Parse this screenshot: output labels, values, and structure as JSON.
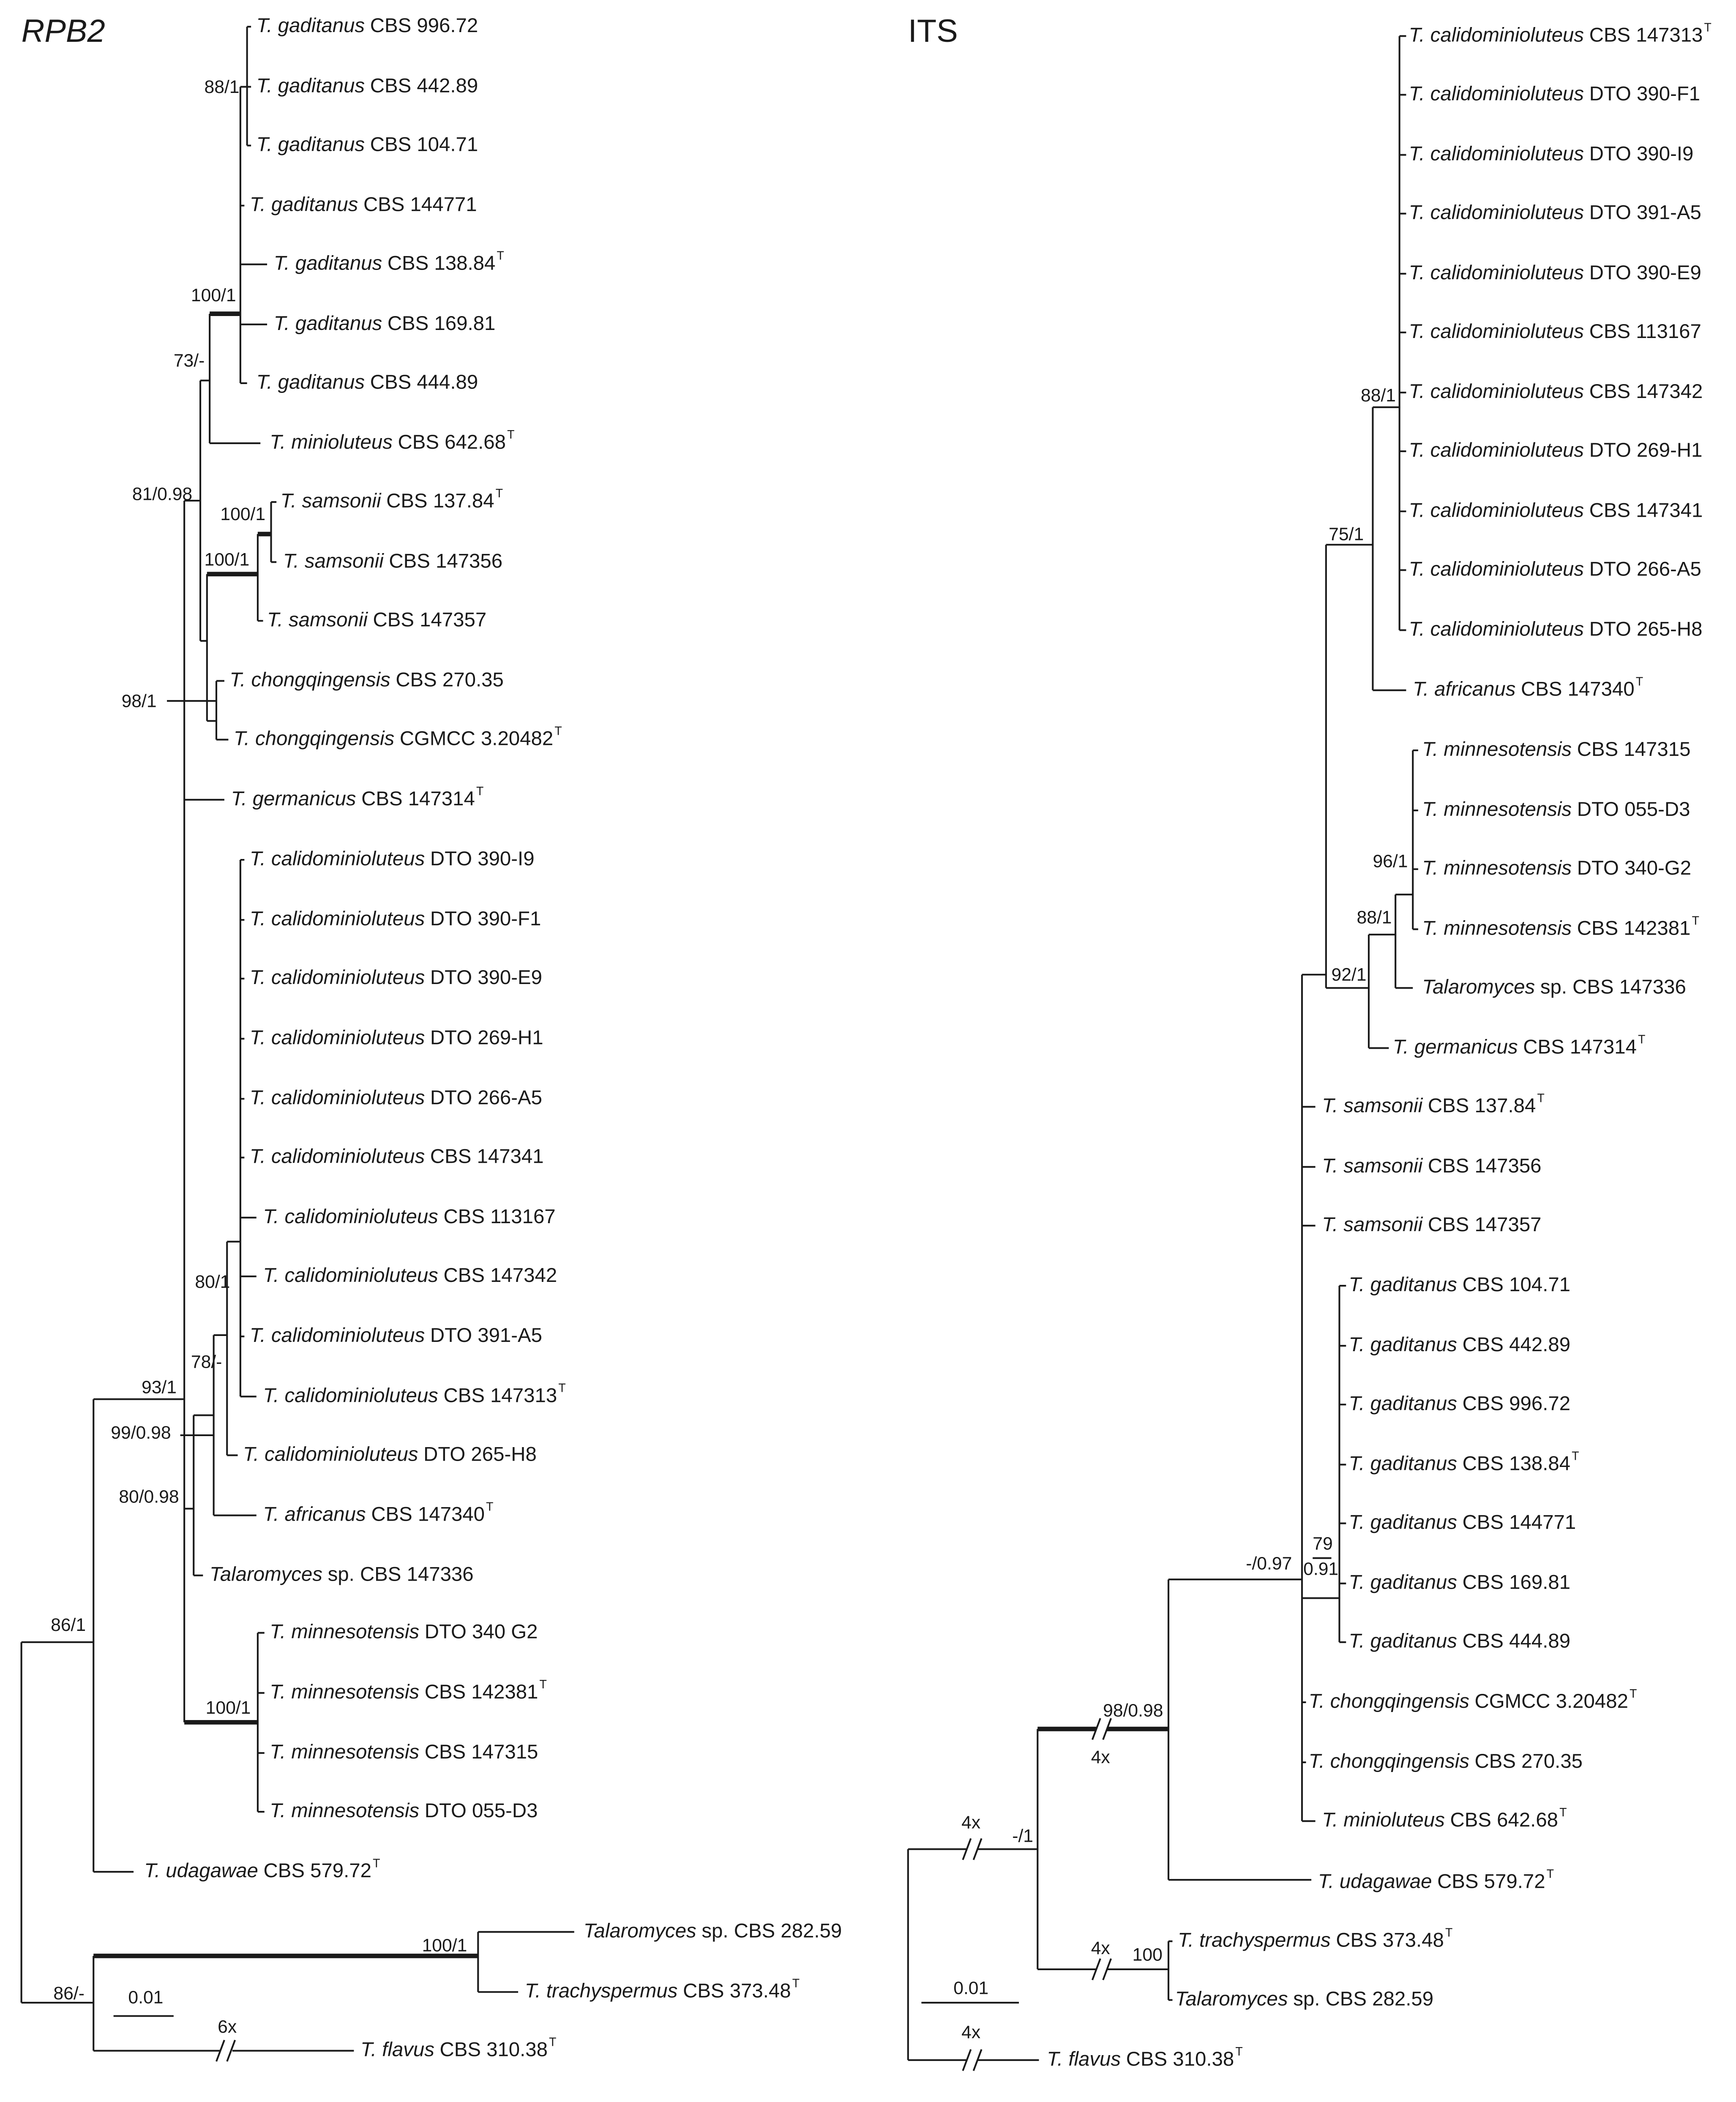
{
  "rpb2": {
    "title": "RPB2",
    "leaves": [
      {
        "taxon": "T. gaditanus",
        "strain": "CBS 996.72"
      },
      {
        "taxon": "T. gaditanus",
        "strain": "CBS 442.89"
      },
      {
        "taxon": "T. gaditanus",
        "strain": "CBS 104.71"
      },
      {
        "taxon": "T. gaditanus",
        "strain": "CBS 144771"
      },
      {
        "taxon": "T. gaditanus",
        "strain": "CBS 138.84",
        "type_mark": "T"
      },
      {
        "taxon": "T. gaditanus",
        "strain": "CBS 169.81"
      },
      {
        "taxon": "T. gaditanus",
        "strain": "CBS 444.89"
      },
      {
        "taxon": "T. minioluteus",
        "strain": "CBS 642.68",
        "type_mark": "T"
      },
      {
        "taxon": "T. samsonii",
        "strain": "CBS 137.84",
        "type_mark": "T"
      },
      {
        "taxon": "T. samsonii",
        "strain": "CBS 147356"
      },
      {
        "taxon": "T. samsonii",
        "strain": "CBS 147357"
      },
      {
        "taxon": "T. chongqingensis",
        "strain": "CBS 270.35"
      },
      {
        "taxon": "T. chongqingensis",
        "strain": "CGMCC 3.20482",
        "type_mark": "T"
      },
      {
        "taxon": "T. germanicus",
        "strain": "CBS 147314",
        "type_mark": "T"
      },
      {
        "taxon": "T. calidominioluteus",
        "strain": "DTO 390-I9"
      },
      {
        "taxon": "T. calidominioluteus",
        "strain": "DTO 390-F1"
      },
      {
        "taxon": "T. calidominioluteus",
        "strain": "DTO 390-E9"
      },
      {
        "taxon": "T. calidominioluteus",
        "strain": "DTO 269-H1"
      },
      {
        "taxon": "T. calidominioluteus",
        "strain": "DTO 266-A5"
      },
      {
        "taxon": "T. calidominioluteus",
        "strain": "CBS 147341"
      },
      {
        "taxon": "T. calidominioluteus",
        "strain": "CBS 113167"
      },
      {
        "taxon": "T. calidominioluteus",
        "strain": "CBS 147342"
      },
      {
        "taxon": "T. calidominioluteus",
        "strain": "DTO 391-A5"
      },
      {
        "taxon": "T. calidominioluteus",
        "strain": "CBS 147313",
        "type_mark": "T"
      },
      {
        "taxon": "T. calidominioluteus",
        "strain": "DTO 265-H8"
      },
      {
        "taxon": "T. africanus",
        "strain": "CBS 147340",
        "type_mark": "T"
      },
      {
        "taxon": "Talaromyces",
        "strain": "sp. CBS 147336"
      },
      {
        "taxon": "T. minnesotensis",
        "strain": "DTO 340 G2"
      },
      {
        "taxon": "T. minnesotensis",
        "strain": "CBS 142381",
        "type_mark": "T"
      },
      {
        "taxon": "T. minnesotensis",
        "strain": "CBS 147315"
      },
      {
        "taxon": "T. minnesotensis",
        "strain": "DTO 055-D3"
      },
      {
        "taxon": "T. udagawae",
        "strain": "CBS 579.72",
        "type_mark": "T"
      },
      {
        "taxon": "Talaromyces",
        "strain": "sp. CBS 282.59"
      },
      {
        "taxon": "T. trachyspermus",
        "strain": "CBS 373.48",
        "type_mark": "T"
      },
      {
        "taxon": "T. flavus",
        "strain": "CBS 310.38",
        "type_mark": "T"
      }
    ],
    "labels": [
      "88/1",
      "100/1",
      "73/-",
      "81/0.98",
      "100/1",
      "100/1",
      "98/1",
      "80/1",
      "78/-",
      "93/1",
      "99/0.98",
      "80/0.98",
      "86/1",
      "100/1",
      "86/-",
      "100/1",
      "6x"
    ],
    "scale": "0.01"
  },
  "its": {
    "title": "ITS",
    "leaves": [
      {
        "taxon": "T. calidominioluteus",
        "strain": "CBS 147313",
        "type_mark": "T"
      },
      {
        "taxon": "T. calidominioluteus",
        "strain": "DTO 390-F1"
      },
      {
        "taxon": "T. calidominioluteus",
        "strain": "DTO 390-I9"
      },
      {
        "taxon": "T. calidominioluteus",
        "strain": "DTO 391-A5"
      },
      {
        "taxon": "T. calidominioluteus",
        "strain": "DTO 390-E9"
      },
      {
        "taxon": "T. calidominioluteus",
        "strain": "CBS 113167"
      },
      {
        "taxon": "T. calidominioluteus",
        "strain": "CBS 147342"
      },
      {
        "taxon": "T. calidominioluteus",
        "strain": "DTO 269-H1"
      },
      {
        "taxon": "T. calidominioluteus",
        "strain": "CBS 147341"
      },
      {
        "taxon": "T. calidominioluteus",
        "strain": "DTO 266-A5"
      },
      {
        "taxon": "T. calidominioluteus",
        "strain": "DTO 265-H8"
      },
      {
        "taxon": "T. africanus",
        "strain": "CBS 147340",
        "type_mark": "T"
      },
      {
        "taxon": "T. minnesotensis",
        "strain": "CBS 147315"
      },
      {
        "taxon": "T. minnesotensis",
        "strain": "DTO 055-D3"
      },
      {
        "taxon": "T. minnesotensis",
        "strain": "DTO 340-G2"
      },
      {
        "taxon": "T. minnesotensis",
        "strain": "CBS 142381",
        "type_mark": "T"
      },
      {
        "taxon": "Talaromyces",
        "strain": "sp. CBS 147336"
      },
      {
        "taxon": "T. germanicus",
        "strain": "CBS 147314",
        "type_mark": "T"
      },
      {
        "taxon": "T. samsonii",
        "strain": "CBS 137.84",
        "type_mark": "T"
      },
      {
        "taxon": "T. samsonii",
        "strain": "CBS 147356"
      },
      {
        "taxon": "T. samsonii",
        "strain": "CBS 147357"
      },
      {
        "taxon": "T. gaditanus",
        "strain": "CBS 104.71"
      },
      {
        "taxon": "T. gaditanus",
        "strain": "CBS 442.89"
      },
      {
        "taxon": "T. gaditanus",
        "strain": "CBS 996.72"
      },
      {
        "taxon": "T. gaditanus",
        "strain": "CBS 138.84",
        "type_mark": "T"
      },
      {
        "taxon": "T. gaditanus",
        "strain": "CBS 144771"
      },
      {
        "taxon": "T. gaditanus",
        "strain": "CBS 169.81"
      },
      {
        "taxon": "T. gaditanus",
        "strain": "CBS 444.89"
      },
      {
        "taxon": "T. chongqingensis",
        "strain": "CGMCC 3.20482",
        "type_mark": "T"
      },
      {
        "taxon": "T. chongqingensis",
        "strain": "CBS 270.35"
      },
      {
        "taxon": "T. minioluteus",
        "strain": "CBS 642.68",
        "type_mark": "T"
      },
      {
        "taxon": "T. udagawae",
        "strain": "CBS 579.72",
        "type_mark": "T"
      },
      {
        "taxon": "T. trachyspermus",
        "strain": "CBS 373.48",
        "type_mark": "T"
      },
      {
        "taxon": "Talaromyces",
        "strain": "sp. CBS 282.59"
      },
      {
        "taxon": "T. flavus",
        "strain": "CBS 310.38",
        "type_mark": "T"
      }
    ],
    "labels": [
      "88/1",
      "75/1",
      "96/1",
      "88/1",
      "92/1",
      "-/0.97",
      "79",
      "0.91",
      "98/0.98",
      "4x",
      "4x",
      "-/1",
      "4x",
      "100",
      "4x"
    ],
    "scale": "0.01"
  }
}
